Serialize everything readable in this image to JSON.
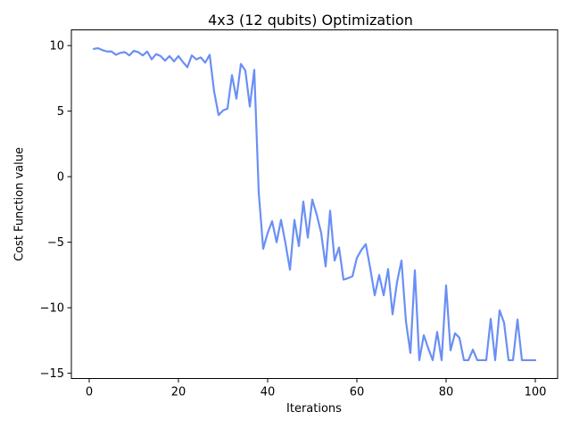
{
  "chart_data": {
    "type": "line",
    "title": "4x3 (12 qubits) Optimization",
    "xlabel": "Iterations",
    "ylabel": "Cost Function value",
    "xlim": [
      -4,
      105
    ],
    "ylim": [
      -15.4,
      11.2
    ],
    "xticks": [
      0,
      20,
      40,
      60,
      80,
      100
    ],
    "yticks": [
      10,
      5,
      0,
      -5,
      -10,
      -15
    ],
    "grid": false,
    "line_color": "#6a8ff5",
    "series": [
      {
        "x": [
          1,
          2,
          3,
          4,
          5,
          6,
          7,
          8,
          9,
          10,
          11,
          12,
          13,
          14,
          15,
          16,
          17,
          18,
          19,
          20,
          21,
          22,
          23,
          24,
          25,
          26,
          27,
          28,
          29,
          30,
          31,
          32,
          33,
          34,
          35,
          36,
          37,
          38,
          39,
          40,
          41,
          42,
          43,
          44,
          45,
          46,
          47,
          48,
          49,
          50,
          51,
          52,
          53,
          54,
          55,
          56,
          57,
          58,
          59,
          60,
          61,
          62,
          63,
          64,
          65,
          66,
          67,
          68,
          69,
          70,
          71,
          72,
          73,
          74,
          75,
          76,
          77,
          78,
          79,
          80,
          81,
          82,
          83,
          84,
          85,
          86,
          87,
          88,
          89,
          90,
          91,
          92,
          93,
          94,
          95,
          96,
          97,
          98,
          99,
          100
        ],
        "values": [
          9.75,
          9.8,
          9.65,
          9.55,
          9.55,
          9.3,
          9.45,
          9.5,
          9.25,
          9.6,
          9.5,
          9.25,
          9.55,
          8.95,
          9.35,
          9.2,
          8.85,
          9.2,
          8.8,
          9.2,
          8.75,
          8.35,
          9.25,
          8.95,
          9.1,
          8.7,
          9.3,
          6.5,
          4.7,
          5.05,
          5.2,
          7.75,
          5.95,
          8.6,
          8.1,
          5.35,
          8.15,
          -1.2,
          -5.5,
          -4.3,
          -3.4,
          -5,
          -3.3,
          -5.1,
          -7.1,
          -3.3,
          -5.3,
          -1.9,
          -4.65,
          -1.75,
          -2.9,
          -4.3,
          -6.85,
          -2.6,
          -6.4,
          -5.4,
          -7.85,
          -7.75,
          -7.6,
          -6.2,
          -5.6,
          -5.15,
          -7,
          -9.05,
          -7.5,
          -9.05,
          -7.05,
          -10.5,
          -8.05,
          -6.4,
          -11.05,
          -13.45,
          -7.15,
          -14,
          -12.1,
          -13.1,
          -14,
          -11.85,
          -14,
          -8.3,
          -13.25,
          -11.95,
          -12.3,
          -14,
          -14,
          -13.2,
          -14,
          -14,
          -14,
          -10.85,
          -14,
          -10.2,
          -11.15,
          -14,
          -14,
          -10.9,
          -14,
          -14,
          -14,
          -14
        ]
      }
    ]
  }
}
